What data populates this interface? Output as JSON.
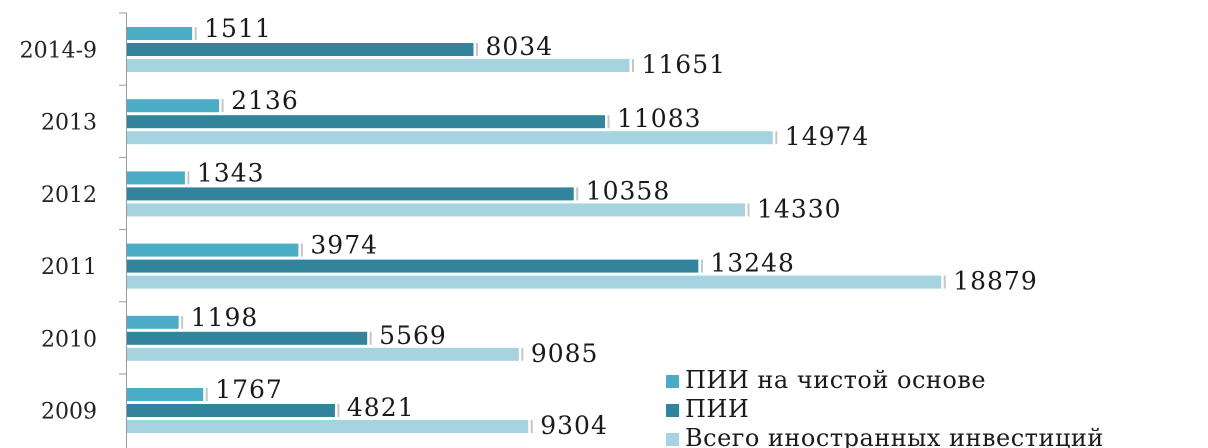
{
  "chart_data": {
    "type": "bar",
    "orientation": "horizontal",
    "categories": [
      "2014-9",
      "2013",
      "2012",
      "2011",
      "2010",
      "2009"
    ],
    "series": [
      {
        "name": "ПИИ на чистой основе",
        "color": "#4BACC6",
        "values": [
          1511,
          2136,
          1343,
          3974,
          1198,
          1767
        ]
      },
      {
        "name": "ПИИ",
        "color": "#31849B",
        "values": [
          8034,
          11083,
          10358,
          13248,
          5569,
          4821
        ]
      },
      {
        "name": "Всего иностранных инвестиций",
        "color": "#A5D3DF",
        "values": [
          11651,
          14974,
          14330,
          18879,
          9085,
          9304
        ]
      }
    ],
    "xlim": [
      0,
      19500
    ],
    "grid": false,
    "legend_position": "bottom-right",
    "data_labels": true
  }
}
